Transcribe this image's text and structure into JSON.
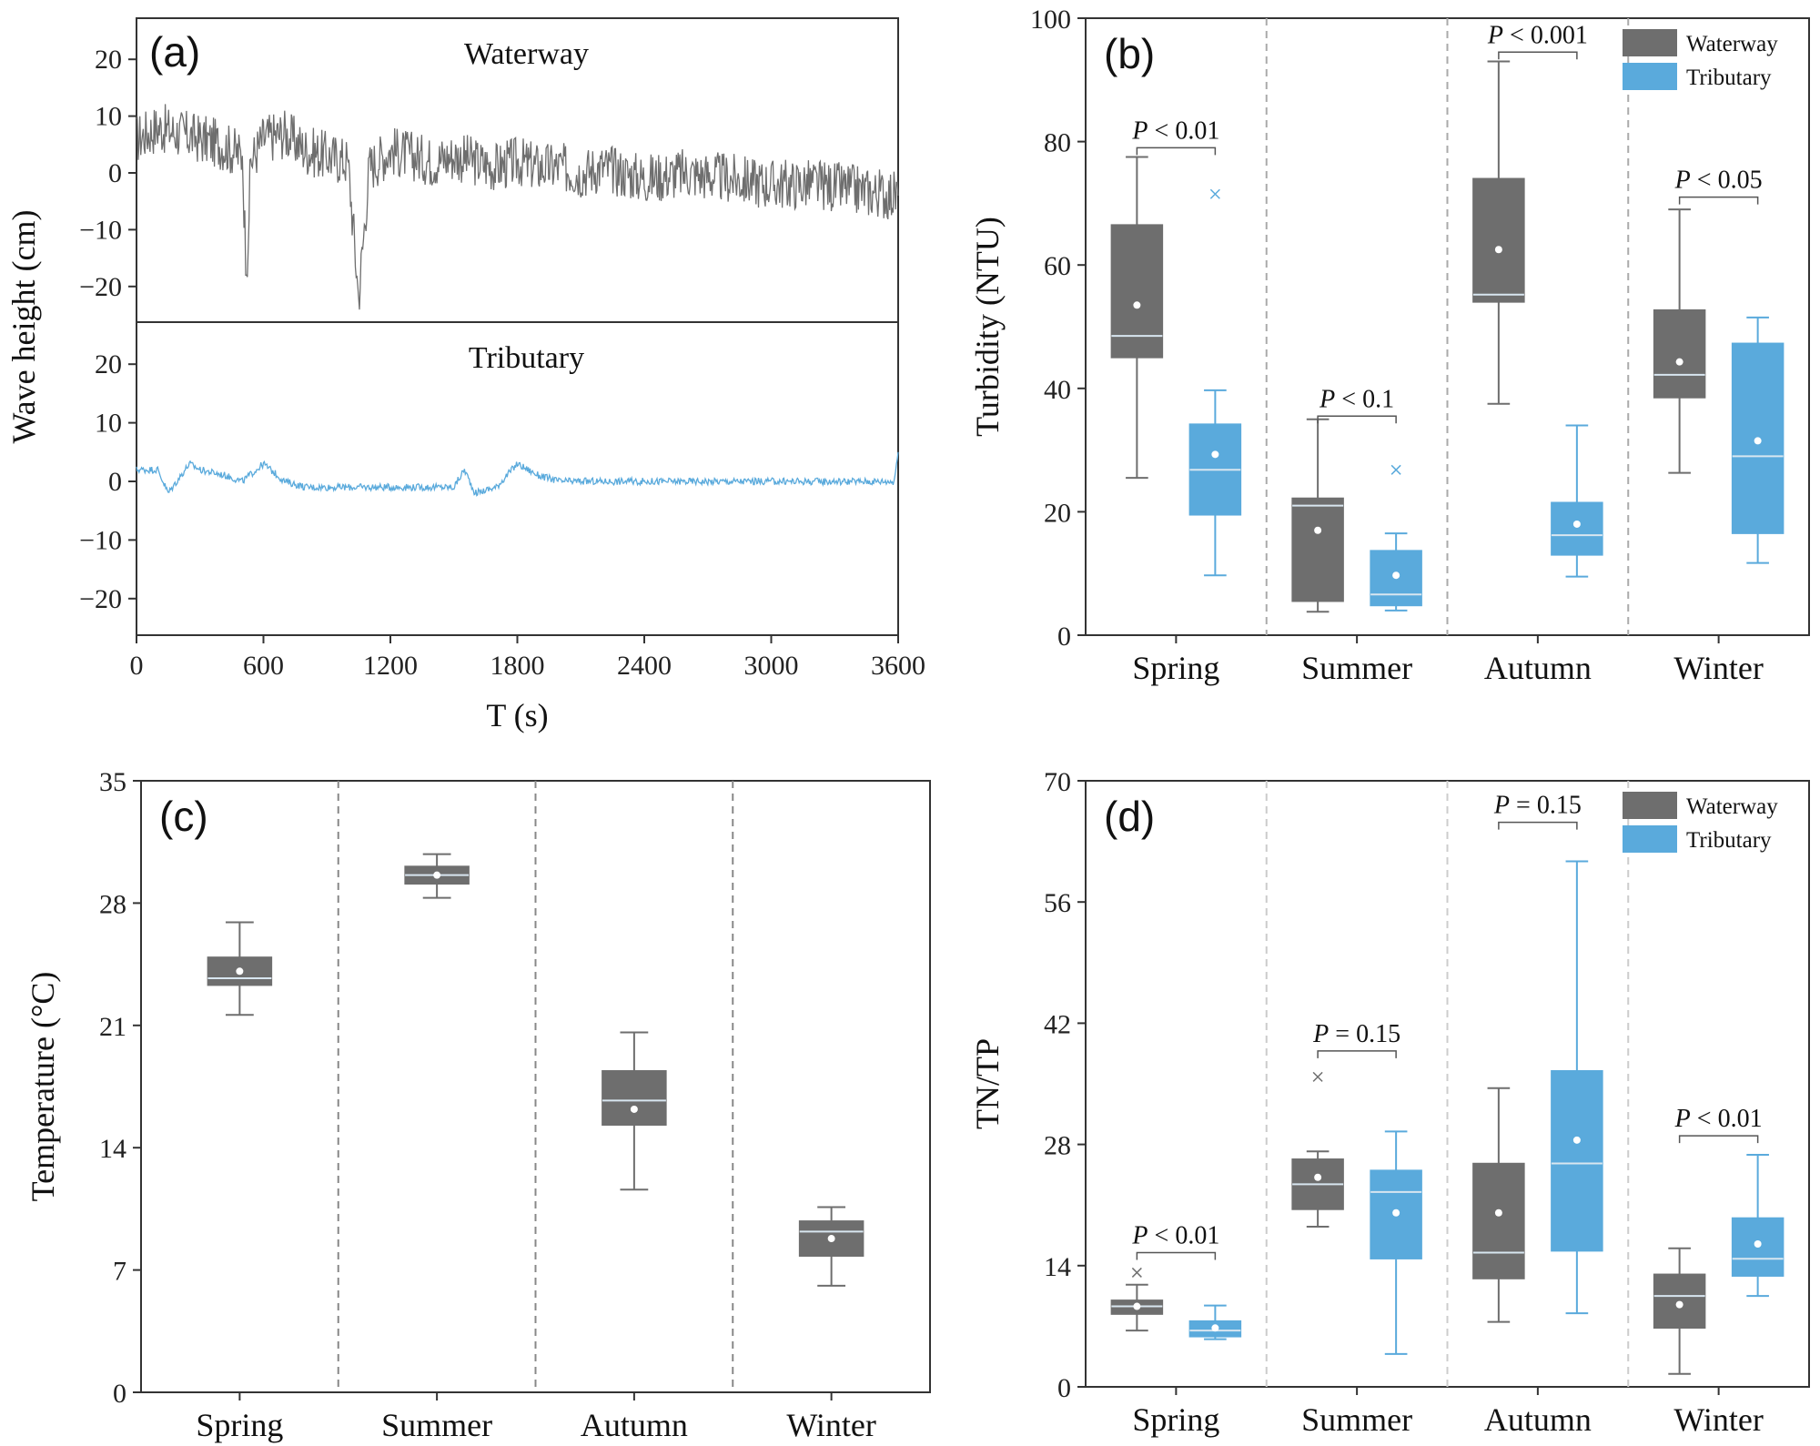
{
  "colors": {
    "waterway": "#6e6e6e",
    "tributary": "#5aaadc",
    "separator": "#888888",
    "separator_light": "#cccccc"
  },
  "chart_data": [
    {
      "id": "a",
      "type": "line",
      "panel_label": "(a)",
      "xlabel": "T (s)",
      "ylabel": "Wave height (cm)",
      "xlim": [
        0,
        3600
      ],
      "x_ticks": [
        "0",
        "600",
        "1200",
        "1800",
        "2400",
        "3000",
        "3600"
      ],
      "y_ticks": [
        "20",
        "10",
        "0",
        "−10",
        "−20"
      ],
      "subplots": [
        {
          "title": "Waterway",
          "ylim": [
            -25,
            25
          ],
          "color": "#6e6e6e",
          "x": [
            0,
            100,
            200,
            300,
            400,
            500,
            520,
            540,
            600,
            700,
            800,
            900,
            1000,
            1050,
            1100,
            1200,
            1300,
            1400,
            1500,
            1600,
            1700,
            1800,
            1900,
            2000,
            2100,
            2200,
            2400,
            2600,
            2800,
            3000,
            3200,
            3400,
            3600
          ],
          "y": [
            6,
            8,
            7,
            6,
            5,
            3,
            -18,
            2,
            6,
            7,
            4,
            3,
            2,
            -22,
            1,
            4,
            3,
            2,
            3,
            2,
            1,
            2,
            1,
            1,
            0,
            1,
            -1,
            0,
            -1,
            -2,
            -2,
            -3,
            -4
          ]
        },
        {
          "title": "Tributary",
          "ylim": [
            -25,
            25
          ],
          "color": "#5aaadc",
          "x": [
            0,
            100,
            150,
            250,
            300,
            420,
            500,
            600,
            700,
            800,
            1000,
            1200,
            1400,
            1500,
            1550,
            1600,
            1700,
            1800,
            1900,
            2000,
            2200,
            2400,
            2600,
            3000,
            3200,
            3400,
            3580,
            3600
          ],
          "y": [
            2,
            2,
            -2,
            3,
            2,
            1,
            0,
            3,
            0,
            -1,
            -1,
            -1,
            -1,
            -1,
            2,
            -2,
            -1,
            3,
            1,
            0,
            0,
            0,
            0,
            0,
            0,
            0,
            0,
            5
          ]
        }
      ]
    },
    {
      "id": "b",
      "type": "box",
      "panel_label": "(b)",
      "ylabel": "Turbidity (NTU)",
      "ylim": [
        0,
        100
      ],
      "y_ticks": [
        0,
        20,
        40,
        60,
        80,
        100
      ],
      "categories": [
        "Spring",
        "Summer",
        "Autumn",
        "Winter"
      ],
      "legend": [
        "Waterway",
        "Tributary"
      ],
      "series": [
        {
          "name": "Waterway",
          "boxes": [
            {
              "min": 25.5,
              "q1": 45,
              "median": 48.5,
              "q3": 66.5,
              "max": 77.5,
              "mean": 53.5
            },
            {
              "min": 3.8,
              "q1": 5.5,
              "median": 21,
              "q3": 22.2,
              "max": 35,
              "mean": 17
            },
            {
              "min": 37.5,
              "q1": 54,
              "median": 55.2,
              "q3": 74,
              "max": 93,
              "mean": 62.5
            },
            {
              "min": 26.3,
              "q1": 38.5,
              "median": 42.2,
              "q3": 52.7,
              "max": 69,
              "mean": 44.3
            }
          ]
        },
        {
          "name": "Tributary",
          "boxes": [
            {
              "min": 9.7,
              "q1": 19.5,
              "median": 26.8,
              "q3": 34.2,
              "max": 39.7,
              "mean": 29.3,
              "outlier": 71.5
            },
            {
              "min": 4,
              "q1": 4.8,
              "median": 6.6,
              "q3": 13.7,
              "max": 16.5,
              "mean": 9.7,
              "outlier": 26.8
            },
            {
              "min": 9.5,
              "q1": 13,
              "median": 16.2,
              "q3": 21.5,
              "max": 34,
              "mean": 18
            },
            {
              "min": 11.7,
              "q1": 16.5,
              "median": 29,
              "q3": 47.3,
              "max": 51.5,
              "mean": 31.5
            }
          ]
        }
      ],
      "annotations": [
        "P < 0.01",
        "P < 0.1",
        "P < 0.001",
        "P < 0.05"
      ],
      "annotation_levels": [
        79,
        35.5,
        94.5,
        71
      ]
    },
    {
      "id": "c",
      "type": "box",
      "panel_label": "(c)",
      "ylabel": "Temperature (°C)",
      "ylim": [
        0,
        35
      ],
      "y_ticks": [
        0,
        7,
        14,
        21,
        28,
        35
      ],
      "categories": [
        "Spring",
        "Summer",
        "Autumn",
        "Winter"
      ],
      "series": [
        {
          "name": "",
          "boxes": [
            {
              "min": 21.6,
              "q1": 23.3,
              "median": 23.7,
              "q3": 24.9,
              "max": 26.9,
              "mean": 24.1
            },
            {
              "min": 28.3,
              "q1": 29.1,
              "median": 29.6,
              "q3": 30.1,
              "max": 30.8,
              "mean": 29.6
            },
            {
              "min": 11.6,
              "q1": 15.3,
              "median": 16.7,
              "q3": 18.4,
              "max": 20.6,
              "mean": 16.2
            },
            {
              "min": 6.1,
              "q1": 7.8,
              "median": 9.2,
              "q3": 9.8,
              "max": 10.6,
              "mean": 8.8
            }
          ]
        }
      ]
    },
    {
      "id": "d",
      "type": "box",
      "panel_label": "(d)",
      "ylabel": "TN/TP",
      "ylim": [
        0,
        70
      ],
      "y_ticks": [
        0,
        14,
        28,
        42,
        56,
        70
      ],
      "categories": [
        "Spring",
        "Summer",
        "Autumn",
        "Winter"
      ],
      "legend": [
        "Waterway",
        "Tributary"
      ],
      "series": [
        {
          "name": "Waterway",
          "boxes": [
            {
              "min": 6.5,
              "q1": 8.4,
              "median": 9.3,
              "q3": 10,
              "max": 11.8,
              "mean": 9.3,
              "outlier": 13.2
            },
            {
              "min": 18.5,
              "q1": 20.5,
              "median": 23.4,
              "q3": 26.3,
              "max": 27.2,
              "mean": 24.2,
              "outlier": 35.8
            },
            {
              "min": 7.5,
              "q1": 12.5,
              "median": 15.5,
              "q3": 25.8,
              "max": 34.5,
              "mean": 20.1
            },
            {
              "min": 1.5,
              "q1": 6.8,
              "median": 10.5,
              "q3": 13,
              "max": 16,
              "mean": 9.5
            }
          ]
        },
        {
          "name": "Tributary",
          "boxes": [
            {
              "min": 5.5,
              "q1": 5.8,
              "median": 6.5,
              "q3": 7.6,
              "max": 9.4,
              "mean": 6.8
            },
            {
              "min": 3.8,
              "q1": 14.8,
              "median": 22.5,
              "q3": 25,
              "max": 29.5,
              "mean": 20.1
            },
            {
              "min": 8.5,
              "q1": 15.7,
              "median": 25.8,
              "q3": 36.5,
              "max": 60.7,
              "mean": 28.5
            },
            {
              "min": 10.5,
              "q1": 12.8,
              "median": 14.8,
              "q3": 19.5,
              "max": 26.8,
              "mean": 16.5
            }
          ]
        }
      ],
      "annotations": [
        "P < 0.01",
        "P = 0.15",
        "P = 0.15",
        "P < 0.01"
      ],
      "annotation_levels": [
        15.5,
        38.8,
        65.2,
        29
      ]
    }
  ]
}
